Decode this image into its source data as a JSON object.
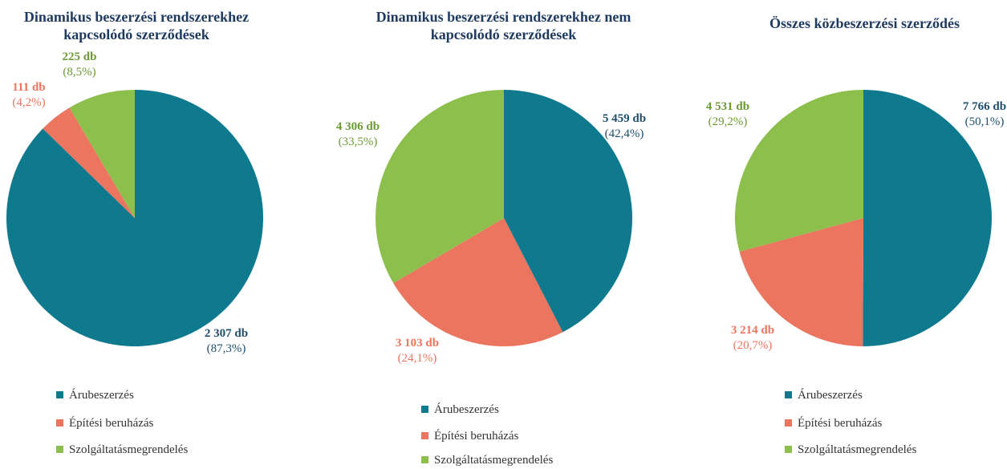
{
  "chart_data": [
    {
      "type": "pie",
      "title": "Dinamikus beszerzési rendszerekhez kapcsolódó szerződések",
      "categories": [
        "Árubeszerzés",
        "Építési beruházás",
        "Szolgáltatásmegrendelés"
      ],
      "values": [
        2307,
        111,
        225
      ],
      "value_labels": [
        "2 307 db",
        "111 db",
        "225 db"
      ],
      "percent_labels": [
        "(87,3%)",
        "(4,2%)",
        "(8,5%)"
      ],
      "colors": [
        "#0f7a8e",
        "#ec7560",
        "#8dbf4c"
      ]
    },
    {
      "type": "pie",
      "title": "Dinamikus beszerzési rendszerekhez nem kapcsolódó szerződések",
      "categories": [
        "Árubeszerzés",
        "Építési beruházás",
        "Szolgáltatásmegrendelés"
      ],
      "values": [
        5459,
        3103,
        4306
      ],
      "value_labels": [
        "5 459 db",
        "3 103 db",
        "4 306 db"
      ],
      "percent_labels": [
        "(42,4%)",
        "(24,1%)",
        "(33,5%)"
      ],
      "colors": [
        "#0f7a8e",
        "#ec7560",
        "#8dbf4c"
      ]
    },
    {
      "type": "pie",
      "title": "Összes közbeszerzési szerződés",
      "categories": [
        "Árubeszerzés",
        "Építési beruházás",
        "Szolgáltatásmegrendelés"
      ],
      "values": [
        7766,
        3214,
        4531
      ],
      "value_labels": [
        "7 766 db",
        "3 214 db",
        "4 531 db"
      ],
      "percent_labels": [
        "(50,1%)",
        "(20,7%)",
        "(29,2%)"
      ],
      "colors": [
        "#0f7a8e",
        "#ec7560",
        "#8dbf4c"
      ]
    }
  ]
}
